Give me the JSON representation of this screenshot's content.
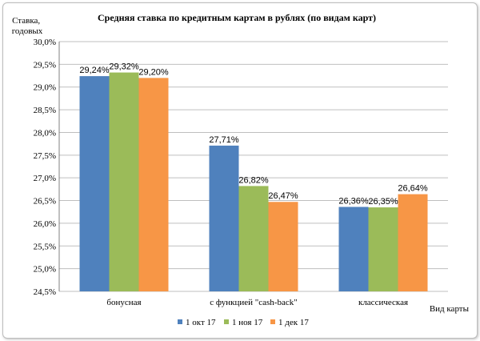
{
  "chart_data": {
    "type": "bar",
    "title": "Средняя  ставка по кредитным картам  в рублях  (по видам  карт)",
    "ylabel": "Ставка, годовых",
    "xlabel": "Вид карты",
    "categories": [
      "бонусная",
      "с функцией \"cash-back\"",
      "классическая"
    ],
    "series": [
      {
        "name": "1 окт 17",
        "values": [
          29.24,
          27.71,
          26.36
        ],
        "labels": [
          "29,24%",
          "27,71%",
          "26,36%"
        ],
        "color": "#4f81bd"
      },
      {
        "name": "1 ноя 17",
        "values": [
          29.32,
          26.82,
          26.35
        ],
        "labels": [
          "29,32%",
          "26,82%",
          "26,35%"
        ],
        "color": "#9bbb59"
      },
      {
        "name": "1 дек 17",
        "values": [
          29.2,
          26.47,
          26.64
        ],
        "labels": [
          "29,20%",
          "26,47%",
          "26,64%"
        ],
        "color": "#f79646"
      }
    ],
    "ylim": [
      24.5,
      30.0
    ],
    "yticks": [
      24.5,
      25.0,
      25.5,
      26.0,
      26.5,
      27.0,
      27.5,
      28.0,
      28.5,
      29.0,
      29.5,
      30.0
    ],
    "ytick_labels": [
      "24,5%",
      "25,0%",
      "25,5%",
      "26,0%",
      "26,5%",
      "27,0%",
      "27,5%",
      "28,0%",
      "28,5%",
      "29,0%",
      "29,5%",
      "30,0%"
    ],
    "grid": true,
    "legend": "bottom"
  }
}
